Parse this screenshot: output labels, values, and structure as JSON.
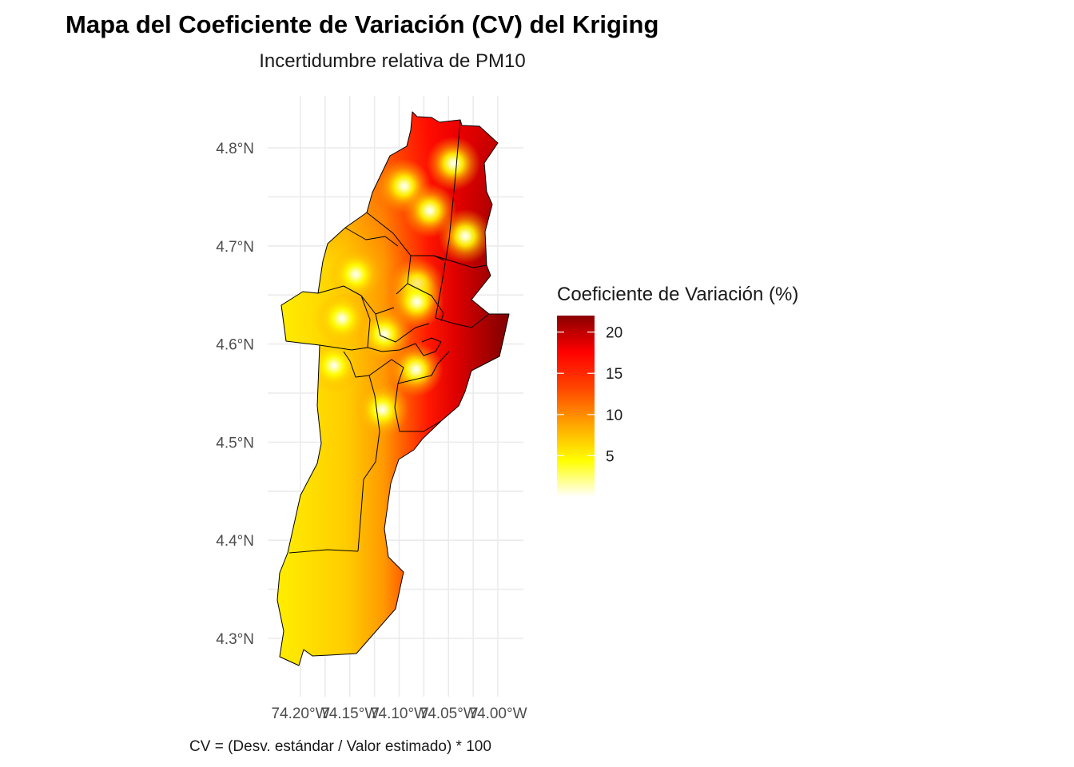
{
  "title": "Mapa del Coeficiente de Variación (CV) del Kriging",
  "subtitle": "Incertidumbre relativa de PM10",
  "caption": "CV = (Desv. estándar / Valor estimado) * 100",
  "legend": {
    "title": "Coeficiente de Variación (%)",
    "min": 0,
    "max": 22,
    "ticks": [
      {
        "value": 5,
        "label": "5"
      },
      {
        "value": 10,
        "label": "10"
      },
      {
        "value": 15,
        "label": "15"
      },
      {
        "value": 20,
        "label": "20"
      }
    ],
    "palette": [
      "#ffffff",
      "#ffff00",
      "#ffa500",
      "#ff4500",
      "#ff0000",
      "#8b0000"
    ]
  },
  "axes": {
    "x_ticks": [
      {
        "value": -74.2,
        "label": "74.20°W"
      },
      {
        "value": -74.15,
        "label": "74.15°W"
      },
      {
        "value": -74.1,
        "label": "74.10°W"
      },
      {
        "value": -74.05,
        "label": "74.05°W"
      },
      {
        "value": -74.0,
        "label": "74.00°W"
      }
    ],
    "y_ticks": [
      {
        "value": 4.3,
        "label": "4.3°N"
      },
      {
        "value": 4.4,
        "label": "4.4°N"
      },
      {
        "value": 4.5,
        "label": "4.5°N"
      },
      {
        "value": 4.6,
        "label": "4.6°N"
      },
      {
        "value": 4.7,
        "label": "4.7°N"
      },
      {
        "value": 4.8,
        "label": "4.8°N"
      }
    ],
    "x_range": [
      -74.225,
      -73.975
    ],
    "y_range": [
      4.255,
      4.85
    ],
    "grid": true
  },
  "stations": [
    {
      "lon": -74.095,
      "lat": 4.761
    },
    {
      "lon": -74.045,
      "lat": 4.784
    },
    {
      "lon": -74.069,
      "lat": 4.736
    },
    {
      "lon": -74.033,
      "lat": 4.71
    },
    {
      "lon": -74.144,
      "lat": 4.671
    },
    {
      "lon": -74.082,
      "lat": 4.66
    },
    {
      "lon": -74.082,
      "lat": 4.643
    },
    {
      "lon": -74.158,
      "lat": 4.626
    },
    {
      "lon": -74.115,
      "lat": 4.61
    },
    {
      "lon": -74.166,
      "lat": 4.578
    },
    {
      "lon": -74.083,
      "lat": 4.574
    },
    {
      "lon": -74.117,
      "lat": 4.533
    }
  ]
}
